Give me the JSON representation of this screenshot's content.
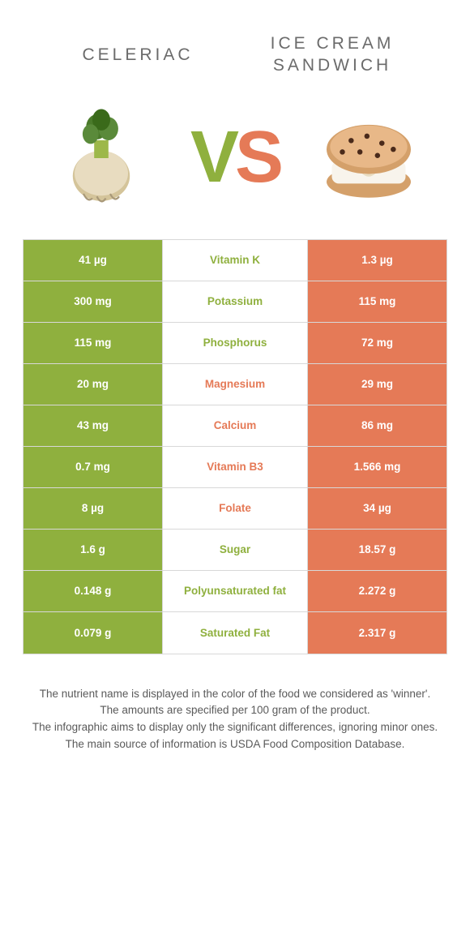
{
  "colors": {
    "left_bg": "#8fb03e",
    "right_bg": "#e57a57",
    "mid_bg": "#ffffff",
    "border": "#d8d8d8",
    "text_gray": "#5a5a5a",
    "cell_text": "#ffffff"
  },
  "header": {
    "left_title": "CELERIAC",
    "right_title": "ICE CREAM SANDWICH"
  },
  "vs": {
    "v": "V",
    "s": "S"
  },
  "rows": [
    {
      "left": "41 µg",
      "mid": "Vitamin K",
      "right": "1.3 µg",
      "winner": "left"
    },
    {
      "left": "300 mg",
      "mid": "Potassium",
      "right": "115 mg",
      "winner": "left"
    },
    {
      "left": "115 mg",
      "mid": "Phosphorus",
      "right": "72 mg",
      "winner": "left"
    },
    {
      "left": "20 mg",
      "mid": "Magnesium",
      "right": "29 mg",
      "winner": "right"
    },
    {
      "left": "43 mg",
      "mid": "Calcium",
      "right": "86 mg",
      "winner": "right"
    },
    {
      "left": "0.7 mg",
      "mid": "Vitamin B3",
      "right": "1.566 mg",
      "winner": "right"
    },
    {
      "left": "8 µg",
      "mid": "Folate",
      "right": "34 µg",
      "winner": "right"
    },
    {
      "left": "1.6 g",
      "mid": "Sugar",
      "right": "18.57 g",
      "winner": "left"
    },
    {
      "left": "0.148 g",
      "mid": "Polyunsaturated fat",
      "right": "2.272 g",
      "winner": "left"
    },
    {
      "left": "0.079 g",
      "mid": "Saturated Fat",
      "right": "2.317 g",
      "winner": "left"
    }
  ],
  "footer": {
    "line1": "The nutrient name is displayed in the color of the food we considered as 'winner'.",
    "line2": "The amounts are specified per 100 gram of the product.",
    "line3": "The infographic aims to display only the significant differences, ignoring minor ones.",
    "line4": "The main source of information is USDA Food Composition Database."
  }
}
